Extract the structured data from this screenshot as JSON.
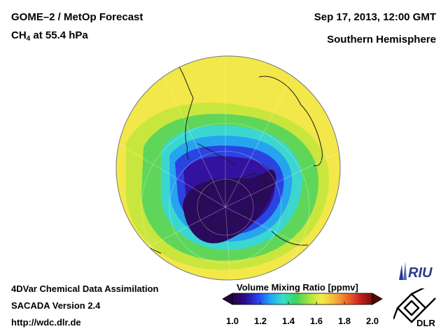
{
  "header": {
    "title_line1": "GOME–2 / MetOp Forecast",
    "species": "CH",
    "species_sub": "4",
    "species_level": " at 55.4 hPa",
    "datetime": "Sep 17, 2013, 12:00 GMT",
    "region": "Southern Hemisphere"
  },
  "footer": {
    "line1": "4DVar Chemical Data Assimilation",
    "line2": "SACADA Version 2.4",
    "line3": "http://wdc.dlr.de"
  },
  "colorbar": {
    "title": "Volume Mixing Ratio [ppmv]",
    "ticks": [
      "1.0",
      "1.2",
      "1.4",
      "1.6",
      "1.8",
      "2.0"
    ],
    "colors": [
      "#2a0040",
      "#2b0a8c",
      "#2a3ff0",
      "#1ea7f5",
      "#37e0c8",
      "#3bd35a",
      "#a8e23a",
      "#f2ee4a",
      "#f6b53c",
      "#ee6a2c",
      "#c8241f",
      "#7a0a0a"
    ]
  },
  "logos": {
    "riu": "RIU",
    "dlr": "DLR"
  },
  "map": {
    "projection": "orthographic south polar",
    "background_color": "#f2e84a",
    "vortex_core_color": "#2b0a5c"
  }
}
